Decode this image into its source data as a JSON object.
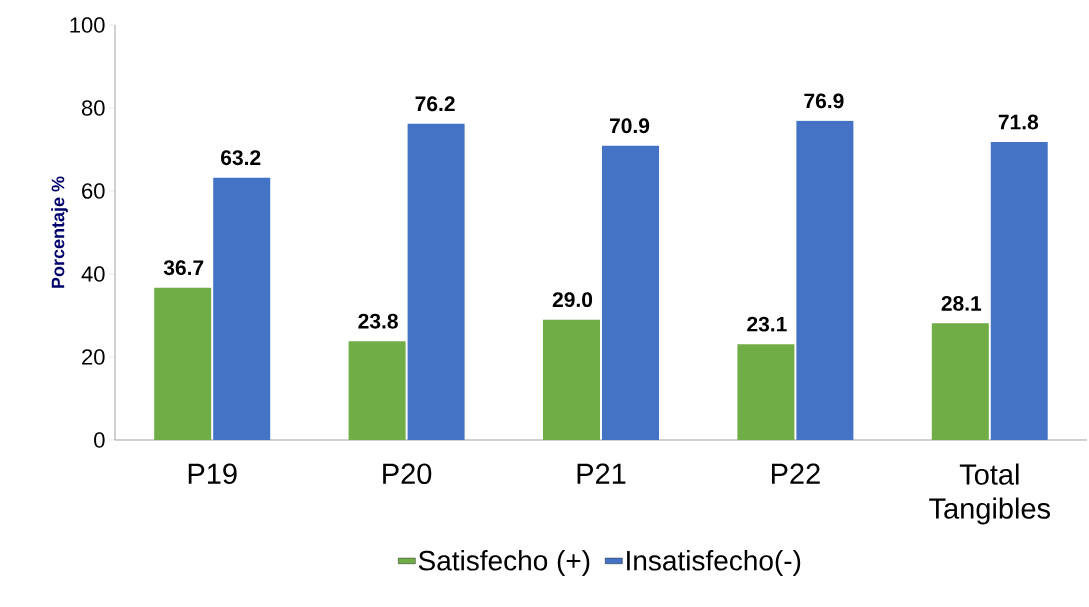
{
  "chart_data": {
    "type": "bar",
    "ylabel": "Porcentaje %",
    "categories": [
      "P19",
      "P20",
      "P21",
      "P22",
      "Total Tangibles"
    ],
    "series": [
      {
        "name": "Satisfecho (+)",
        "color": "#70ad47",
        "values": [
          36.7,
          23.8,
          29.0,
          23.1,
          28.1
        ],
        "value_labels": [
          "36.7",
          "23.8",
          "29.0",
          "23.1",
          "28.1"
        ]
      },
      {
        "name": "Insatisfecho(-)",
        "color": "#4472c4",
        "values": [
          63.2,
          76.2,
          70.9,
          76.9,
          71.8
        ],
        "value_labels": [
          "63.2",
          "76.2",
          "70.9",
          "76.9",
          "71.8"
        ]
      }
    ],
    "ylim": [
      0,
      100
    ],
    "yticks": [
      0,
      20,
      40,
      60,
      80,
      100
    ],
    "legend": "bottom"
  }
}
